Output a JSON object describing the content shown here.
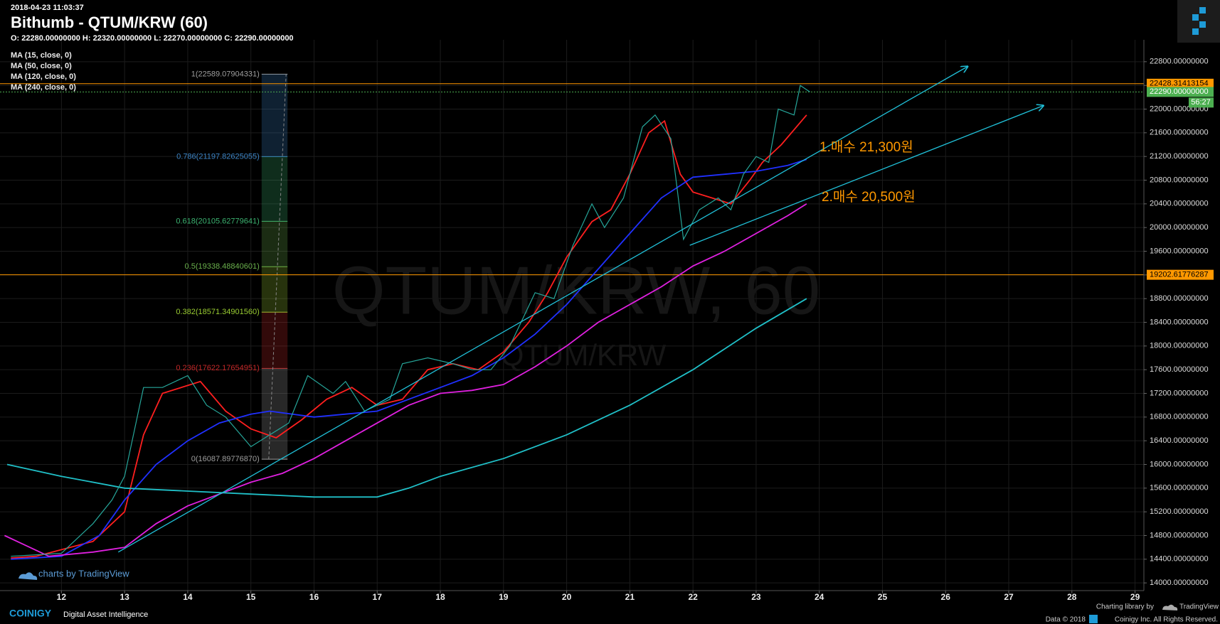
{
  "header": {
    "timestamp": "2018-04-23 11:03:37",
    "title": "Bithumb - QTUM/KRW (60)",
    "ohlc": "O: 22280.00000000 H: 22320.00000000 L: 22270.00000000 C: 22290.00000000"
  },
  "chart_data": {
    "type": "line",
    "watermark": "QTUM/KRW, 60",
    "watermark_sub": "QTUM/KRW",
    "xlim": [
      11.14,
      29.14
    ],
    "ylim": [
      13870,
      23050
    ],
    "xticks": [
      12,
      13,
      14,
      15,
      16,
      17,
      18,
      19,
      20,
      21,
      22,
      23,
      24,
      25,
      26,
      27,
      28,
      29
    ],
    "yticks": [
      {
        "value": 14000,
        "label": "14000.00000000"
      },
      {
        "value": 14400,
        "label": "14400.00000000"
      },
      {
        "value": 14800,
        "label": "14800.00000000"
      },
      {
        "value": 15200,
        "label": "15200.00000000"
      },
      {
        "value": 15600,
        "label": "15600.00000000"
      },
      {
        "value": 16000,
        "label": "16000.00000000"
      },
      {
        "value": 16400,
        "label": "16400.00000000"
      },
      {
        "value": 16800,
        "label": "16800.00000000"
      },
      {
        "value": 17200,
        "label": "17200.00000000"
      },
      {
        "value": 17600,
        "label": "17600.00000000"
      },
      {
        "value": 18000,
        "label": "18000.00000000"
      },
      {
        "value": 18400,
        "label": "18400.00000000"
      },
      {
        "value": 18800,
        "label": "18800.00000000"
      },
      {
        "value": 19200,
        "label": "19200.00000000"
      },
      {
        "value": 19600,
        "label": "19600.00000000"
      },
      {
        "value": 20000,
        "label": "20000.00000000"
      },
      {
        "value": 20400,
        "label": "20400.00000000"
      },
      {
        "value": 20800,
        "label": "20800.00000000"
      },
      {
        "value": 21200,
        "label": "21200.00000000"
      },
      {
        "value": 21600,
        "label": "21600.00000000"
      },
      {
        "value": 22000,
        "label": "22000.00000000"
      },
      {
        "value": 22400,
        "label": "22400.00000000"
      },
      {
        "value": 22800,
        "label": "22800.00000000"
      }
    ],
    "grid": true,
    "price": {
      "color": "#26a69a",
      "x": [
        11.2,
        12.0,
        12.5,
        12.8,
        13.0,
        13.3,
        13.6,
        14.0,
        14.3,
        14.6,
        15.0,
        15.3,
        15.6,
        15.9,
        16.3,
        16.5,
        16.8,
        17.2,
        17.4,
        17.8,
        18.2,
        18.5,
        18.8,
        19.1,
        19.5,
        19.8,
        20.1,
        20.4,
        20.6,
        20.9,
        21.2,
        21.4,
        21.65,
        21.85,
        22.1,
        22.4,
        22.6,
        22.8,
        23.0,
        23.2,
        23.35,
        23.6,
        23.7,
        23.85
      ],
      "y": [
        14450,
        14500,
        15000,
        15400,
        15800,
        17300,
        17300,
        17500,
        17000,
        16800,
        16300,
        16500,
        16700,
        17500,
        17200,
        17400,
        16900,
        17100,
        17700,
        17800,
        17700,
        17600,
        17600,
        18000,
        18900,
        18800,
        19700,
        20400,
        20000,
        20500,
        21700,
        21900,
        21500,
        19800,
        20300,
        20500,
        20300,
        20900,
        21200,
        21100,
        22000,
        21900,
        22400,
        22290
      ]
    },
    "series": [
      {
        "name": "MA (15, close, 0)",
        "color": "#ff1f1f",
        "x": [
          11.2,
          11.6,
          12.5,
          13.0,
          13.3,
          13.6,
          14.2,
          14.6,
          15.0,
          15.4,
          15.8,
          16.2,
          16.6,
          17.0,
          17.4,
          17.8,
          18.2,
          18.6,
          19.0,
          19.4,
          19.7,
          20.0,
          20.4,
          20.7,
          21.0,
          21.3,
          21.55,
          21.8,
          22.0,
          22.3,
          22.6,
          22.9,
          23.1,
          23.4,
          23.8
        ],
        "y": [
          14420,
          14450,
          14700,
          15200,
          16500,
          17200,
          17400,
          16900,
          16600,
          16450,
          16750,
          17100,
          17300,
          17000,
          17100,
          17600,
          17700,
          17600,
          17900,
          18400,
          18900,
          19500,
          20100,
          20300,
          20900,
          21600,
          21800,
          20900,
          20600,
          20500,
          20400,
          20800,
          21100,
          21400,
          21900
        ]
      },
      {
        "name": "MA (50, close, 0)",
        "color": "#2030ff",
        "x": [
          11.2,
          12.0,
          12.6,
          13.0,
          13.5,
          14.0,
          14.5,
          15.0,
          15.3,
          16.0,
          16.5,
          17.0,
          17.5,
          18.0,
          18.5,
          19.0,
          19.5,
          20.0,
          20.5,
          21.0,
          21.5,
          22.0,
          22.5,
          23.0,
          23.5,
          23.8
        ],
        "y": [
          14400,
          14450,
          14800,
          15400,
          16000,
          16400,
          16700,
          16850,
          16900,
          16800,
          16850,
          16900,
          17100,
          17300,
          17500,
          17800,
          18200,
          18700,
          19300,
          19900,
          20500,
          20850,
          20900,
          20950,
          21050,
          21150
        ]
      },
      {
        "name": "MA (120, close, 0)",
        "color": "#e020e0",
        "x": [
          11.1,
          11.5,
          11.8,
          12.5,
          13.0,
          13.5,
          14.0,
          14.5,
          15.0,
          15.5,
          16.0,
          16.5,
          17.0,
          17.5,
          18.0,
          18.5,
          19.0,
          19.5,
          20.0,
          20.5,
          21.0,
          21.5,
          22.0,
          22.5,
          23.0,
          23.5,
          23.8
        ],
        "y": [
          14800,
          14600,
          14450,
          14520,
          14600,
          15000,
          15300,
          15500,
          15700,
          15850,
          16100,
          16400,
          16700,
          17000,
          17200,
          17250,
          17350,
          17650,
          18000,
          18400,
          18700,
          19000,
          19350,
          19600,
          19900,
          20200,
          20400
        ]
      },
      {
        "name": "MA (240, close, 0)",
        "color": "#20c0c8",
        "x": [
          11.14,
          12.0,
          13.0,
          14.0,
          15.0,
          16.0,
          17.0,
          17.5,
          18.0,
          19.0,
          20.0,
          21.0,
          22.0,
          23.0,
          23.8
        ],
        "y": [
          16000,
          15800,
          15600,
          15550,
          15500,
          15450,
          15450,
          15600,
          15800,
          16100,
          16500,
          17000,
          17600,
          18300,
          18800
        ]
      }
    ],
    "price_lines": [
      {
        "value": 22428.31413154,
        "label": "22428.31413154",
        "color": "#ff9800"
      },
      {
        "value": 19202.61776287,
        "label": "19202.61776287",
        "color": "#ff9800"
      }
    ],
    "current_price": {
      "value": 22290,
      "label": "22290.00000000",
      "color": "#4caf50",
      "countdown": "56:27"
    },
    "fib": {
      "x": [
        15.17,
        15.58
      ],
      "levels": [
        {
          "value": 22589.07904331,
          "label": "1(22589.07904331)",
          "color": "#9e9e9e"
        },
        {
          "value": 21197.82625055,
          "label": "0.786(21197.82625055)",
          "color": "#3d85c6"
        },
        {
          "value": 20105.62779641,
          "label": "0.618(20105.62779641)",
          "color": "#3cb371"
        },
        {
          "value": 19338.48840601,
          "label": "0.5(19338.48840601)",
          "color": "#6ab04c"
        },
        {
          "value": 18571.3490156,
          "label": "0.382(18571.34901560)",
          "color": "#9acd32"
        },
        {
          "value": 17622.17654951,
          "label": "0.236(17622.17654951)",
          "color": "#c62828"
        },
        {
          "value": 16087.8977687,
          "label": "0(16087.89776870)",
          "color": "#9e9e9e"
        }
      ]
    },
    "trend_lines": [
      {
        "x": [
          12.9,
          26.35
        ],
        "y": [
          14520,
          22720
        ],
        "color": "#20c0d8"
      },
      {
        "x": [
          21.95,
          27.55
        ],
        "y": [
          19700,
          22060
        ],
        "color": "#20c0d8"
      }
    ],
    "annotations": [
      "1.매수 21,300원",
      "2.매수 20,500원"
    ]
  },
  "footer": {
    "tradingview_credit": "charts by TradingView",
    "brand": "COINIGY",
    "tagline": "Digital Asset Intelligence",
    "library_credit": "Charting library by",
    "library_name": "TradingView",
    "data_credit": "Data © 2018",
    "rights": "Coinigy Inc. All Rights Reserved."
  }
}
